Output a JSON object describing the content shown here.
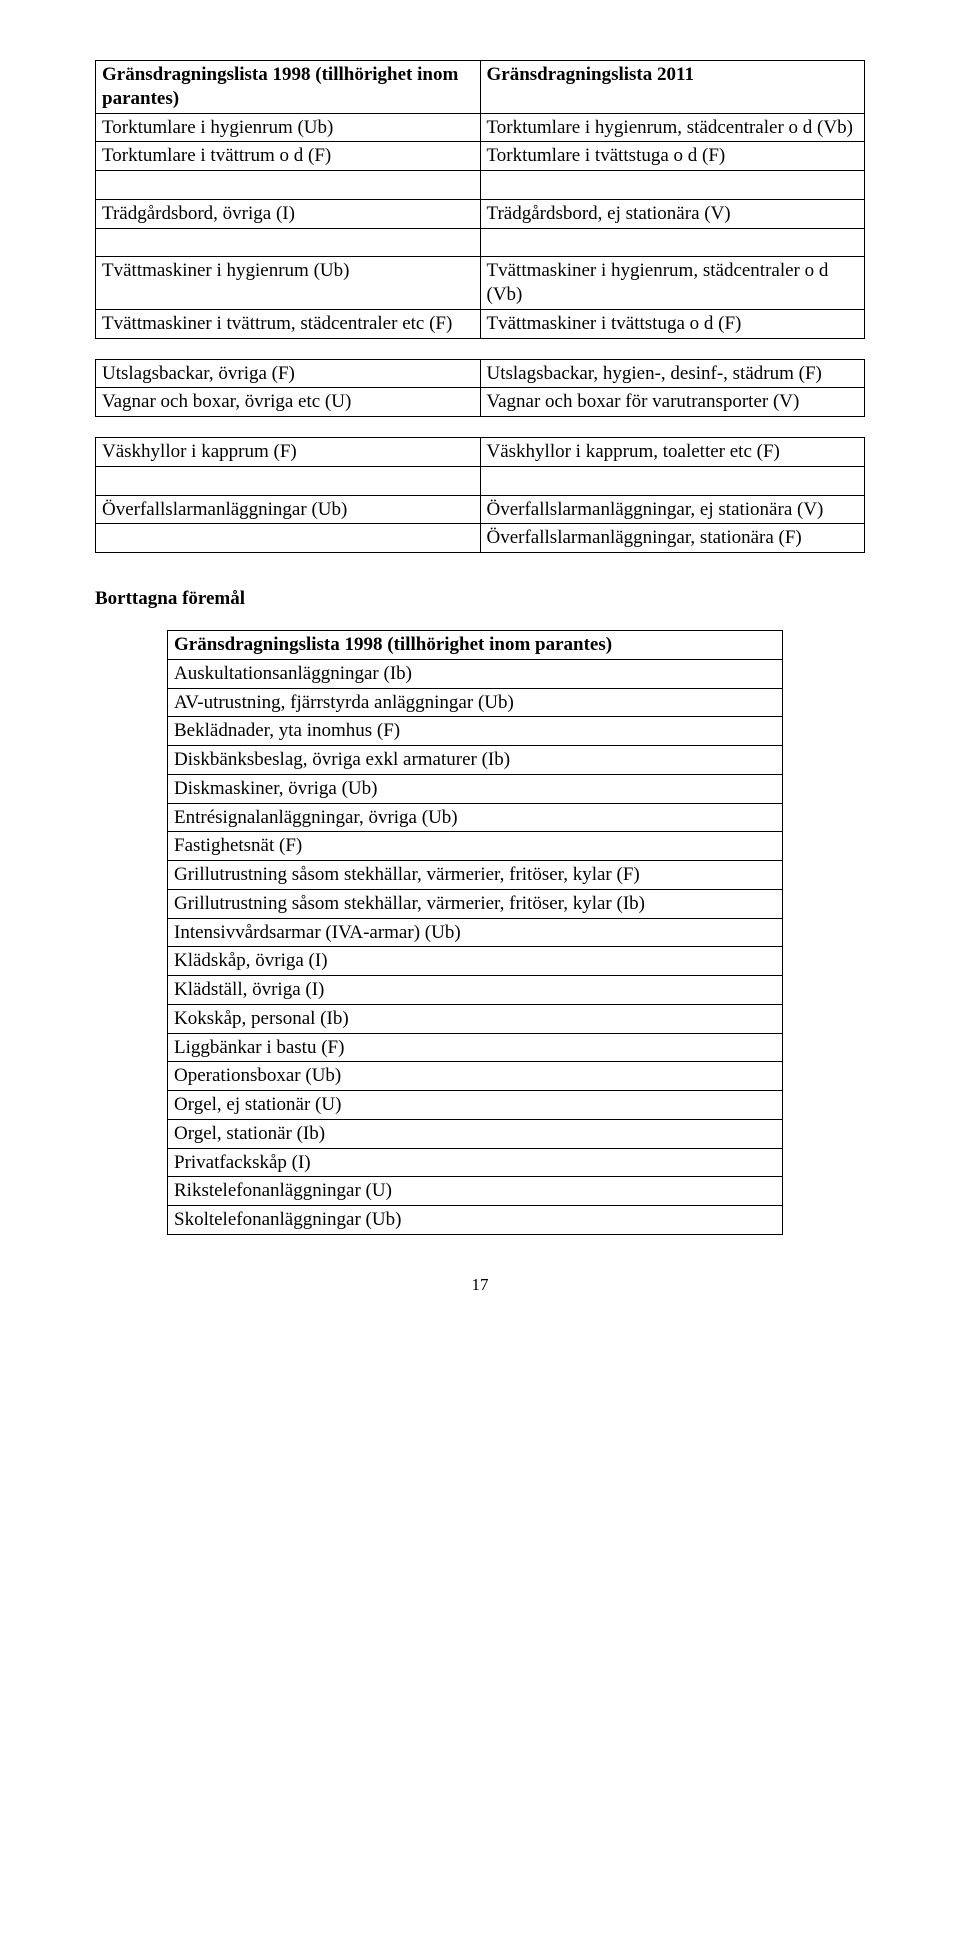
{
  "table1": {
    "header_left": "Gränsdragningslista 1998 (tillhörighet inom parantes)",
    "header_right": "Gränsdragningslista 2011",
    "rows": [
      [
        "Torktumlare i hygienrum (Ub)",
        "Torktumlare i hygienrum, städcentraler o d (Vb)"
      ],
      [
        "Torktumlare i tvättrum o d (F)",
        "Torktumlare i tvättstuga o d (F)"
      ],
      [
        "",
        ""
      ],
      [
        "Trädgårdsbord, övriga (I)",
        "Trädgårdsbord, ej stationära (V)"
      ],
      [
        "",
        ""
      ],
      [
        "Tvättmaskiner i hygienrum (Ub)",
        "Tvättmaskiner i hygienrum, städcentraler o d (Vb)"
      ],
      [
        "Tvättmaskiner i tvättrum, städcentraler etc (F)",
        "Tvättmaskiner i tvättstuga o d (F)"
      ]
    ]
  },
  "table2": {
    "rows": [
      [
        "Utslagsbackar, övriga (F)",
        "Utslagsbackar, hygien-, desinf-, städrum (F)"
      ],
      [
        "Vagnar och boxar, övriga etc (U)",
        "Vagnar och boxar för varutransporter (V)"
      ]
    ]
  },
  "table3": {
    "rows": [
      [
        "Väskhyllor i kapprum (F)",
        "Väskhyllor i kapprum, toaletter etc (F)"
      ],
      [
        "",
        ""
      ],
      [
        "Överfallslarmanläggningar (Ub)",
        "Överfallslarmanläggningar, ej stationära (V)"
      ],
      [
        "",
        "Överfallslarmanläggningar, stationära (F)"
      ]
    ]
  },
  "removed_heading": "Borttagna föremål",
  "table4": {
    "header": "Gränsdragningslista 1998 (tillhörighet inom parantes)",
    "rows": [
      "Auskultationsanläggningar (Ib)",
      "AV-utrustning, fjärrstyrda anläggningar (Ub)",
      "Beklädnader, yta inomhus (F)",
      "Diskbänksbeslag, övriga exkl armaturer (Ib)",
      "Diskmaskiner, övriga (Ub)",
      "Entrésignalanläggningar, övriga (Ub)",
      "Fastighetsnät (F)",
      "Grillutrustning såsom stekhällar, värmerier, fritöser, kylar (F)",
      "Grillutrustning såsom stekhällar, värmerier, fritöser, kylar (Ib)",
      "Intensivvårdsarmar (IVA-armar) (Ub)",
      "Klädskåp, övriga (I)",
      "Klädställ, övriga (I)",
      "Kokskåp, personal (Ib)",
      "Liggbänkar i bastu (F)",
      "Operationsboxar (Ub)",
      "Orgel, ej stationär (U)",
      "Orgel, stationär (Ib)",
      "Privatfackskåp (I)",
      "Rikstelefonanläggningar (U)",
      "Skoltelefonanläggningar (Ub)"
    ]
  },
  "page_number": "17"
}
